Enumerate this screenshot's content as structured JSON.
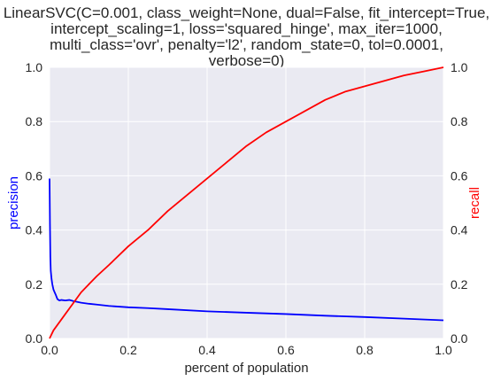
{
  "chart_data": {
    "type": "line",
    "title_lines": [
      "LinearSVC(C=0.001, class_weight=None, dual=False, fit_intercept=True,",
      "intercept_scaling=1, loss='squared_hinge', max_iter=1000,",
      "multi_class='ovr', penalty='l2', random_state=0, tol=0.0001,",
      "verbose=0)"
    ],
    "xlabel": "percent of population",
    "ylabel_left": "precision",
    "ylabel_right": "recall",
    "xlim": [
      0,
      1
    ],
    "ylim": [
      0,
      1
    ],
    "x_ticks": [
      0.0,
      0.2,
      0.4,
      0.6,
      0.8,
      1.0
    ],
    "x_tick_labels": [
      "0.0",
      "0.2",
      "0.4",
      "0.6",
      "0.8",
      "1.0"
    ],
    "y_ticks": [
      0.0,
      0.2,
      0.4,
      0.6,
      0.8,
      1.0
    ],
    "y_tick_labels": [
      "0.0",
      "0.2",
      "0.4",
      "0.6",
      "0.8",
      "1.0"
    ],
    "grid": true,
    "colors": {
      "background": "#eaeaf2",
      "grid": "#ffffff",
      "precision": "#0000ff",
      "recall": "#ff0000",
      "text": "#262626"
    },
    "series": [
      {
        "axis": "left",
        "color": "#0000ff",
        "x": [
          0.0,
          0.001,
          0.002,
          0.003,
          0.005,
          0.007,
          0.01,
          0.013,
          0.016,
          0.02,
          0.025,
          0.03,
          0.04,
          0.05,
          0.06,
          0.08,
          0.1,
          0.12,
          0.15,
          0.2,
          0.25,
          0.3,
          0.4,
          0.5,
          0.6,
          0.7,
          0.8,
          0.9,
          1.0
        ],
        "y": [
          0.59,
          0.42,
          0.3,
          0.25,
          0.22,
          0.2,
          0.18,
          0.17,
          0.16,
          0.145,
          0.14,
          0.142,
          0.14,
          0.142,
          0.138,
          0.132,
          0.128,
          0.125,
          0.12,
          0.115,
          0.112,
          0.108,
          0.1,
          0.095,
          0.09,
          0.084,
          0.079,
          0.073,
          0.067
        ]
      },
      {
        "axis": "right",
        "color": "#ff0000",
        "x": [
          0.0,
          0.01,
          0.02,
          0.04,
          0.06,
          0.08,
          0.1,
          0.12,
          0.15,
          0.2,
          0.25,
          0.3,
          0.35,
          0.4,
          0.45,
          0.5,
          0.55,
          0.6,
          0.65,
          0.7,
          0.75,
          0.8,
          0.85,
          0.9,
          0.95,
          1.0
        ],
        "y": [
          0.0,
          0.03,
          0.05,
          0.09,
          0.13,
          0.17,
          0.2,
          0.23,
          0.27,
          0.34,
          0.4,
          0.47,
          0.53,
          0.59,
          0.65,
          0.71,
          0.76,
          0.8,
          0.84,
          0.88,
          0.91,
          0.93,
          0.95,
          0.97,
          0.985,
          1.0
        ]
      }
    ]
  }
}
